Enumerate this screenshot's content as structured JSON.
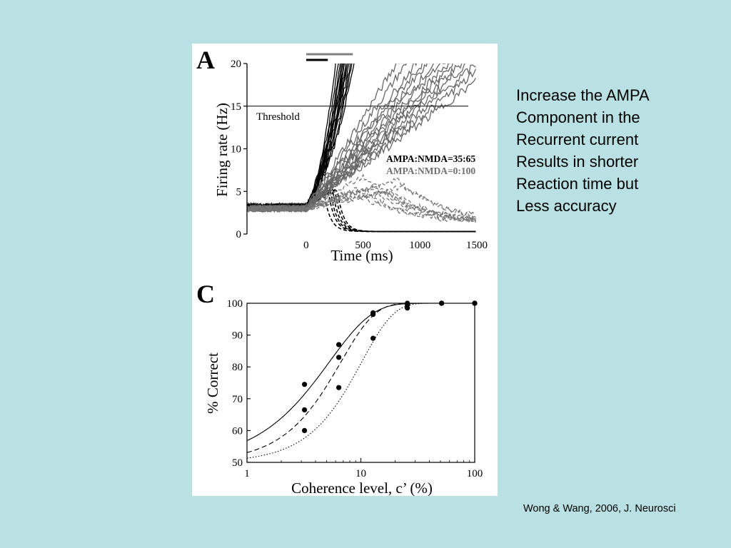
{
  "slide": {
    "side_text": [
      "Increase the AMPA",
      "Component in the",
      "Recurrent current",
      "Results in shorter",
      "Reaction time but",
      "Less accuracy"
    ],
    "citation": "Wong & Wang, 2006, J. Neurosci",
    "background_color": "#b9e0e2"
  },
  "chart_data": [
    {
      "panel": "A",
      "type": "line",
      "xlabel": "Time (ms)",
      "ylabel": "Firing rate (Hz)",
      "xlim": [
        -520,
        1500
      ],
      "ylim": [
        0,
        20
      ],
      "x_ticks": [
        "0",
        "500",
        "1000",
        "1500"
      ],
      "y_ticks": [
        "0",
        "5",
        "10",
        "15",
        "20"
      ],
      "threshold": {
        "label": "Threshold",
        "value": 15
      },
      "legend": [
        {
          "label": "AMPA:NMDA=35:65",
          "color": "#000000"
        },
        {
          "label": "AMPA:NMDA=0:100",
          "color": "#707070"
        }
      ],
      "series": [
        {
          "name": "AMPA:NMDA=35:65",
          "color": "#000000",
          "baseline_hz": 3.2,
          "winner_cross_times_ms": [
            210,
            225,
            240,
            250,
            258,
            265,
            272,
            280,
            288,
            296,
            305,
            315,
            325,
            340
          ],
          "loser_decay_times_ms": [
            150,
            190,
            210,
            230,
            250,
            270
          ]
        },
        {
          "name": "AMPA:NMDA=0:100",
          "color": "#707070",
          "baseline_hz": 3.0,
          "winner_cross_times_ms": [
            560,
            620,
            680,
            720,
            760,
            800,
            840,
            880,
            920,
            960,
            1000,
            1060,
            1120,
            1200
          ],
          "loser_peak_times_ms": [
            400,
            450,
            500,
            560,
            620,
            680,
            740,
            800,
            860
          ]
        }
      ],
      "scale_bars": [
        {
          "color": "#000000",
          "start_ms": 0,
          "end_ms": 190
        },
        {
          "color": "#808080",
          "start_ms": 0,
          "end_ms": 410
        }
      ]
    },
    {
      "panel": "C",
      "type": "scatter",
      "xlabel": "Coherence level,  c’ (%)",
      "ylabel": "% Correct",
      "x_scale": "log",
      "xlim": [
        1,
        100
      ],
      "ylim": [
        50,
        100
      ],
      "x_ticks": [
        "1",
        "10",
        "100"
      ],
      "y_ticks": [
        "50",
        "60",
        "70",
        "80",
        "90",
        "100"
      ],
      "series": [
        {
          "line_style": "solid",
          "x": [
            3.2,
            6.4,
            12.8,
            25.6,
            51.2,
            100
          ],
          "y": [
            74.5,
            87,
            97,
            100,
            100,
            100
          ]
        },
        {
          "line_style": "dashed",
          "x": [
            3.2,
            6.4,
            12.8,
            25.6,
            51.2,
            100
          ],
          "y": [
            66.5,
            83,
            96.5,
            99.5,
            100,
            100
          ]
        },
        {
          "line_style": "dotted",
          "x": [
            3.2,
            6.4,
            12.8,
            25.6,
            51.2,
            100
          ],
          "y": [
            60,
            73.5,
            89,
            98.5,
            100,
            100
          ]
        }
      ]
    }
  ]
}
